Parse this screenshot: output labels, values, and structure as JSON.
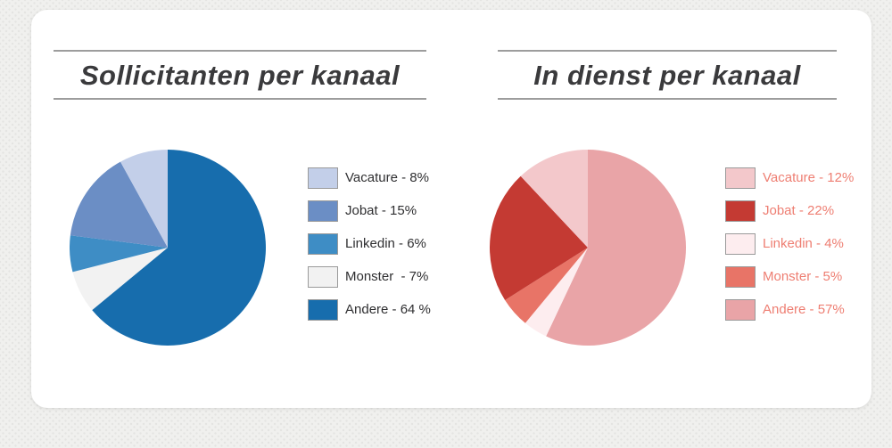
{
  "page": {
    "background_color": "#f0f0ee",
    "dot_color": "#e4e4e2",
    "card_color": "#ffffff"
  },
  "style": {
    "title_text_color": "#3a3a3c",
    "title_rule_color": "#9d9d9d",
    "swatch_border_color": "#9a9a9a"
  },
  "chart_data": [
    {
      "type": "pie",
      "title": "Sollicitanten per kanaal",
      "categories": [
        "Vacature",
        "Jobat",
        "Linkedin",
        "Monster",
        "Andere"
      ],
      "values": [
        8,
        15,
        6,
        7,
        64
      ],
      "colors": [
        "#c3cfe9",
        "#6b8ec5",
        "#3e8dc5",
        "#f2f2f2",
        "#176dad"
      ],
      "legend_labels": [
        "Vacature - 8%",
        "Jobat - 15%",
        "Linkedin - 6%",
        "Monster  - 7%",
        "Andere - 64 %"
      ],
      "legend_position": "right",
      "legend_text_color": "#2f2f31",
      "start_angle_deg": 0,
      "direction": "clockwise",
      "draw_order": [
        "Andere",
        "Monster",
        "Linkedin",
        "Jobat",
        "Vacature"
      ]
    },
    {
      "type": "pie",
      "title": "In dienst per kanaal",
      "categories": [
        "Vacature",
        "Jobat",
        "Linkedin",
        "Monster",
        "Andere"
      ],
      "values": [
        12,
        22,
        4,
        5,
        57
      ],
      "colors": [
        "#f3c8cb",
        "#c43a33",
        "#fdedef",
        "#e87467",
        "#e9a4a7"
      ],
      "legend_labels": [
        "Vacature - 12%",
        "Jobat - 22%",
        "Linkedin - 4%",
        "Monster - 5%",
        "Andere - 57%"
      ],
      "legend_position": "right",
      "legend_text_color": "#ee7e72",
      "start_angle_deg": 0,
      "direction": "clockwise",
      "draw_order": [
        "Andere",
        "Linkedin",
        "Monster",
        "Jobat",
        "Vacature"
      ]
    }
  ]
}
